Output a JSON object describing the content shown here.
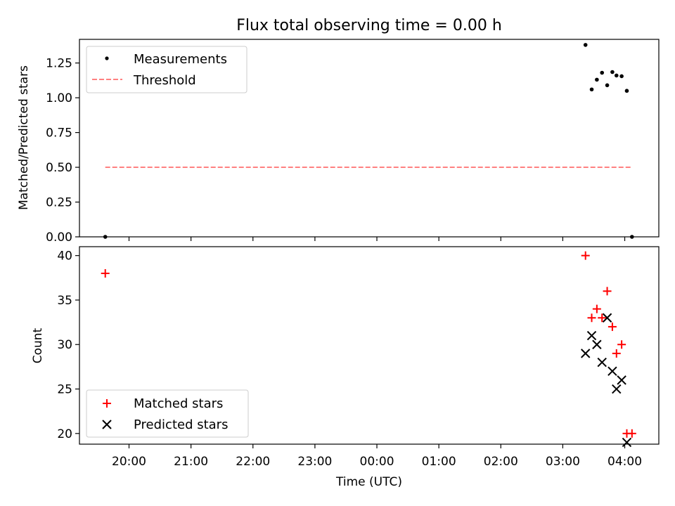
{
  "chart_data": [
    {
      "type": "scatter",
      "title": "Flux total observing time = 0.00 h",
      "xlabel": "",
      "ylabel": "Matched/Predicted stars",
      "ylim": [
        0.0,
        1.42
      ],
      "yticks": [
        "0.00",
        "0.25",
        "0.50",
        "0.75",
        "1.00",
        "1.25"
      ],
      "ytick_values": [
        0.0,
        0.25,
        0.5,
        0.75,
        1.0,
        1.25
      ],
      "legend_position": "upper-left",
      "series": [
        {
          "name": "Measurements",
          "marker": "dot",
          "color": "#000000",
          "points": [
            {
              "t": "19:37",
              "y": 0.0
            },
            {
              "t": "03:22",
              "y": 1.38
            },
            {
              "t": "03:28",
              "y": 1.06
            },
            {
              "t": "03:33",
              "y": 1.13
            },
            {
              "t": "03:38",
              "y": 1.18
            },
            {
              "t": "03:43",
              "y": 1.09
            },
            {
              "t": "03:48",
              "y": 1.185
            },
            {
              "t": "03:52",
              "y": 1.16
            },
            {
              "t": "03:57",
              "y": 1.155
            },
            {
              "t": "04:02",
              "y": 1.05
            },
            {
              "t": "04:07",
              "y": 0.0
            }
          ]
        },
        {
          "name": "Threshold",
          "marker": "dashed-line",
          "color": "#ff8080",
          "points": [
            {
              "t": "19:37",
              "y": 0.5
            },
            {
              "t": "04:07",
              "y": 0.5
            }
          ]
        }
      ]
    },
    {
      "type": "scatter",
      "title": "",
      "xlabel": "Time (UTC)",
      "ylabel": "Count",
      "ylim": [
        18.8,
        41.0
      ],
      "yticks": [
        "20",
        "25",
        "30",
        "35",
        "40"
      ],
      "ytick_values": [
        20,
        25,
        30,
        35,
        40
      ],
      "xticks": [
        "20:00",
        "21:00",
        "22:00",
        "23:00",
        "00:00",
        "01:00",
        "02:00",
        "03:00",
        "04:00"
      ],
      "legend_position": "lower-left",
      "series": [
        {
          "name": "Matched stars",
          "marker": "plus",
          "color": "#ff0000",
          "points": [
            {
              "t": "19:37",
              "y": 38
            },
            {
              "t": "03:22",
              "y": 40
            },
            {
              "t": "03:28",
              "y": 33
            },
            {
              "t": "03:33",
              "y": 34
            },
            {
              "t": "03:38",
              "y": 33
            },
            {
              "t": "03:43",
              "y": 36
            },
            {
              "t": "03:48",
              "y": 32
            },
            {
              "t": "03:52",
              "y": 29
            },
            {
              "t": "03:57",
              "y": 30
            },
            {
              "t": "04:02",
              "y": 20
            },
            {
              "t": "04:07",
              "y": 20
            }
          ]
        },
        {
          "name": "Predicted stars",
          "marker": "x",
          "color": "#000000",
          "points": [
            {
              "t": "03:22",
              "y": 29
            },
            {
              "t": "03:28",
              "y": 31
            },
            {
              "t": "03:33",
              "y": 30
            },
            {
              "t": "03:38",
              "y": 28
            },
            {
              "t": "03:43",
              "y": 33
            },
            {
              "t": "03:48",
              "y": 27
            },
            {
              "t": "03:52",
              "y": 25
            },
            {
              "t": "03:57",
              "y": 26
            },
            {
              "t": "04:02",
              "y": 19
            }
          ]
        }
      ]
    }
  ],
  "time_axis": {
    "start": "19:12",
    "end": "04:33",
    "midnight_wrap": true
  }
}
